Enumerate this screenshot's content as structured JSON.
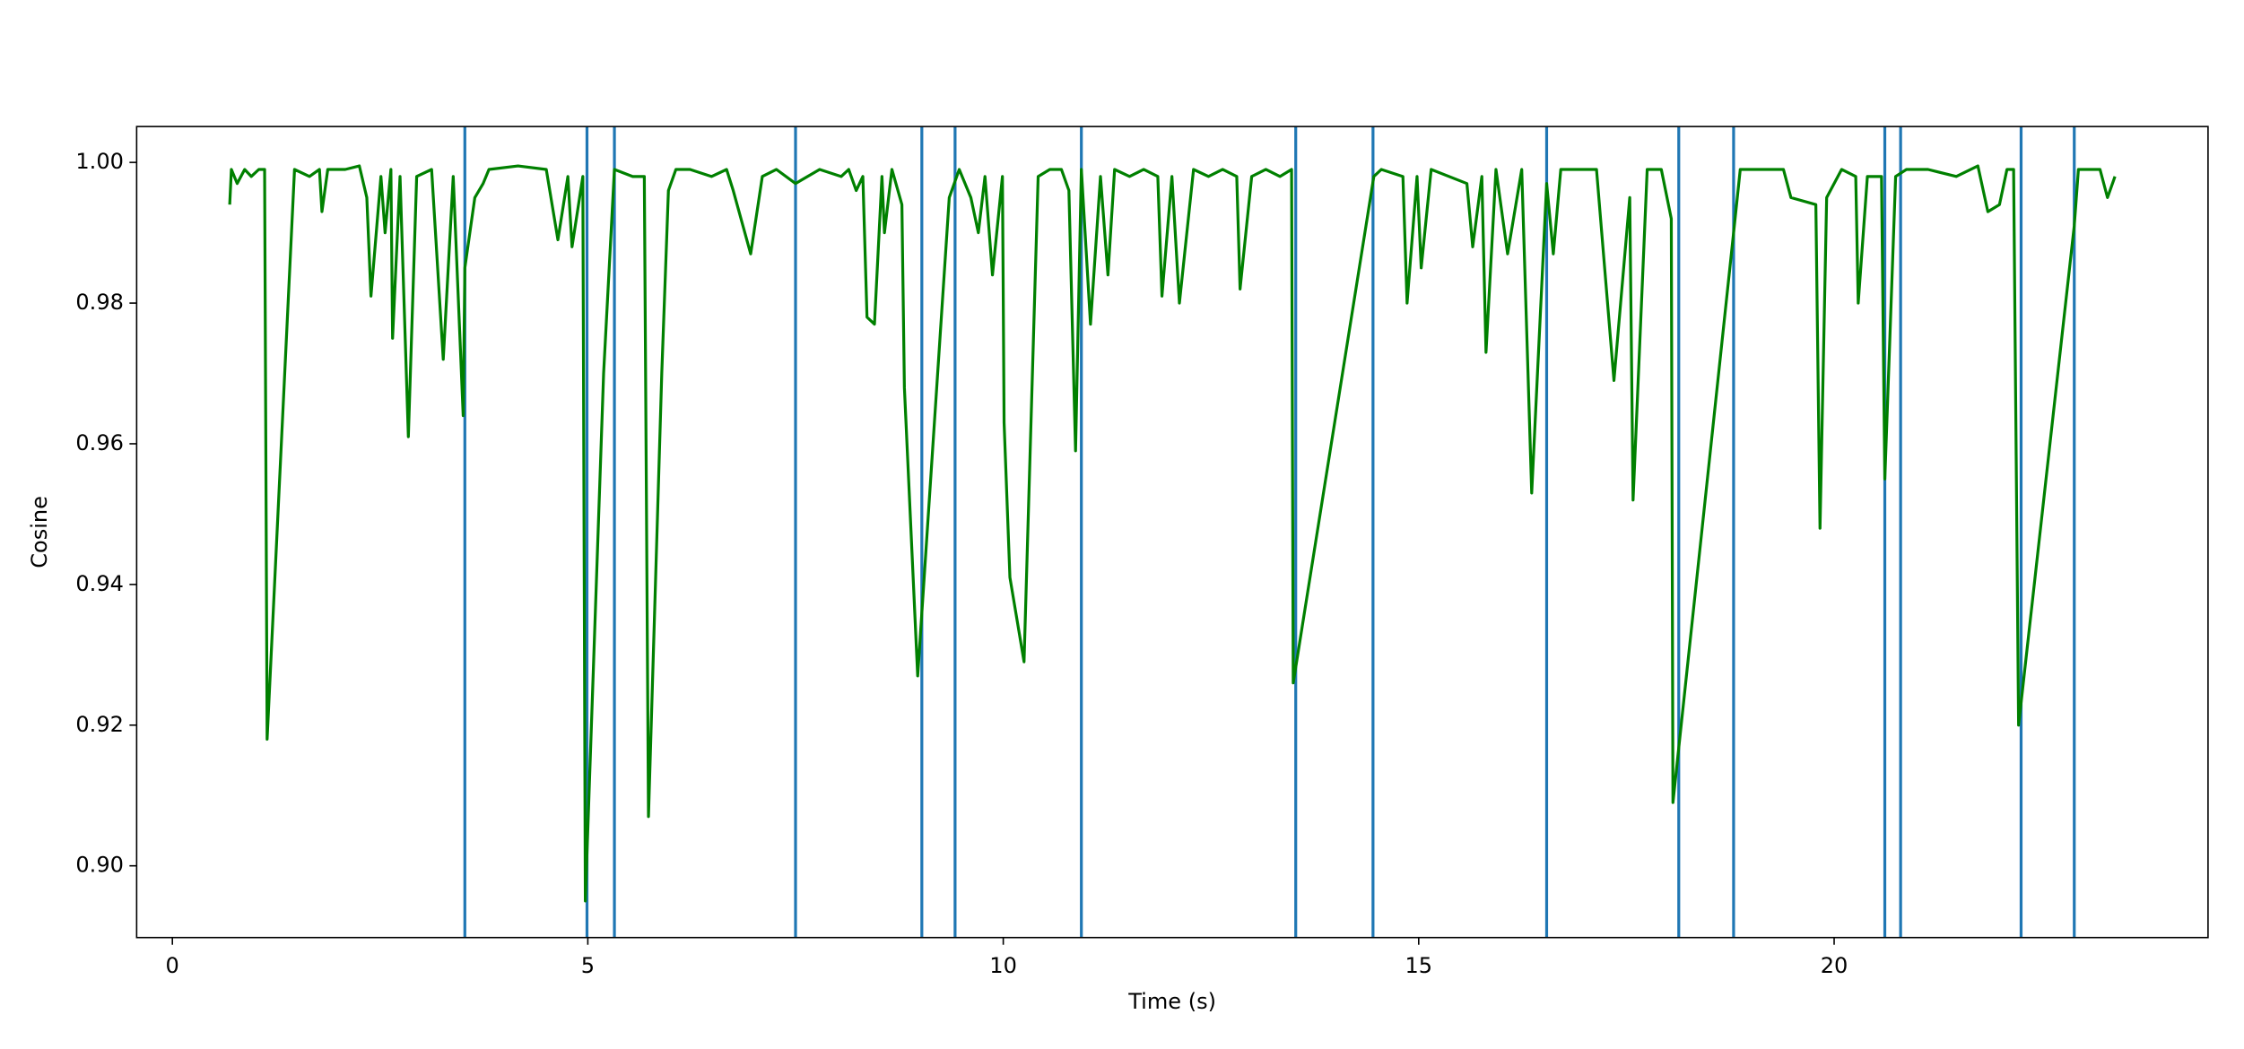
{
  "chart_data": {
    "type": "line",
    "xlabel": "Time (s)",
    "ylabel": "Cosine",
    "xlim": [
      -0.43,
      24.5
    ],
    "ylim": [
      0.8898,
      1.0051
    ],
    "xticks": [
      0,
      5,
      10,
      15,
      20
    ],
    "yticks": [
      {
        "value": 0.9,
        "label": "0.90"
      },
      0.92,
      0.94,
      0.96,
      0.98,
      {
        "value": 1.0,
        "label": "1.00"
      }
    ],
    "grid": false,
    "series": [
      {
        "color": "#008000",
        "x": [
          0.69,
          0.71,
          0.78,
          0.87,
          0.95,
          1.04,
          1.11,
          1.14,
          1.47,
          1.65,
          1.77,
          1.8,
          1.87,
          2.08,
          2.25,
          2.34,
          2.39,
          2.51,
          2.56,
          2.63,
          2.65,
          2.74,
          2.84,
          2.94,
          3.12,
          3.26,
          3.38,
          3.5,
          3.52,
          3.64,
          3.74,
          3.81,
          4.16,
          4.5,
          4.64,
          4.76,
          4.81,
          4.94,
          4.97,
          5.19,
          5.32,
          5.54,
          5.68,
          5.73,
          5.89,
          5.97,
          6.06,
          6.23,
          6.49,
          6.67,
          6.75,
          6.96,
          7.1,
          7.27,
          7.5,
          7.79,
          8.05,
          8.14,
          8.23,
          8.31,
          8.36,
          8.45,
          8.54,
          8.57,
          8.66,
          8.78,
          8.81,
          8.97,
          9.35,
          9.47,
          9.61,
          9.7,
          9.78,
          9.87,
          9.99,
          10.01,
          10.08,
          10.25,
          10.42,
          10.56,
          10.7,
          10.79,
          10.87,
          10.94,
          11.05,
          11.17,
          11.26,
          11.34,
          11.52,
          11.69,
          11.86,
          11.91,
          12.03,
          12.12,
          12.29,
          12.47,
          12.64,
          12.81,
          12.85,
          12.99,
          13.16,
          13.33,
          13.47,
          13.49,
          14.46,
          14.55,
          14.81,
          14.86,
          14.98,
          15.03,
          15.15,
          15.58,
          15.65,
          15.76,
          15.81,
          15.93,
          16.07,
          16.24,
          16.36,
          16.54,
          16.62,
          16.71,
          16.97,
          17.14,
          17.35,
          17.54,
          17.58,
          17.75,
          17.92,
          18.04,
          18.06,
          18.79,
          18.87,
          19.39,
          19.48,
          19.78,
          19.83,
          19.91,
          20.09,
          20.26,
          20.29,
          20.4,
          20.57,
          20.61,
          20.74,
          20.87,
          21.13,
          21.47,
          21.73,
          21.85,
          21.99,
          22.08,
          22.16,
          22.22,
          22.89,
          22.94,
          23.2,
          23.29,
          23.38
        ],
        "values": [
          0.994,
          0.999,
          0.997,
          0.999,
          0.998,
          0.999,
          0.999,
          0.918,
          0.999,
          0.998,
          0.999,
          0.993,
          0.999,
          0.999,
          0.9995,
          0.995,
          0.981,
          0.998,
          0.99,
          0.999,
          0.975,
          0.998,
          0.961,
          0.998,
          0.999,
          0.972,
          0.998,
          0.964,
          0.985,
          0.995,
          0.997,
          0.999,
          0.9995,
          0.999,
          0.989,
          0.998,
          0.988,
          0.998,
          0.895,
          0.97,
          0.999,
          0.998,
          0.998,
          0.907,
          0.97,
          0.996,
          0.999,
          0.999,
          0.998,
          0.999,
          0.996,
          0.987,
          0.998,
          0.999,
          0.997,
          0.999,
          0.998,
          0.999,
          0.996,
          0.998,
          0.978,
          0.977,
          0.998,
          0.99,
          0.999,
          0.994,
          0.968,
          0.927,
          0.995,
          0.999,
          0.995,
          0.99,
          0.998,
          0.984,
          0.998,
          0.963,
          0.941,
          0.929,
          0.998,
          0.999,
          0.999,
          0.996,
          0.959,
          0.999,
          0.977,
          0.998,
          0.984,
          0.999,
          0.998,
          0.999,
          0.998,
          0.981,
          0.998,
          0.98,
          0.999,
          0.998,
          0.999,
          0.998,
          0.982,
          0.998,
          0.999,
          0.998,
          0.999,
          0.926,
          0.998,
          0.999,
          0.998,
          0.98,
          0.998,
          0.985,
          0.999,
          0.997,
          0.988,
          0.998,
          0.973,
          0.999,
          0.987,
          0.999,
          0.953,
          0.997,
          0.987,
          0.999,
          0.999,
          0.999,
          0.969,
          0.995,
          0.952,
          0.999,
          0.999,
          0.992,
          0.909,
          0.99,
          0.999,
          0.999,
          0.995,
          0.994,
          0.948,
          0.995,
          0.999,
          0.998,
          0.98,
          0.998,
          0.998,
          0.955,
          0.998,
          0.999,
          0.999,
          0.998,
          0.9995,
          0.993,
          0.994,
          0.999,
          0.999,
          0.92,
          0.991,
          0.999,
          0.999,
          0.995,
          0.998
        ]
      }
    ],
    "vlines": {
      "color": "#1f77b4",
      "x": [
        3.52,
        4.99,
        5.32,
        7.5,
        9.02,
        9.42,
        10.94,
        13.52,
        14.45,
        16.54,
        18.13,
        18.79,
        20.61,
        20.8,
        22.25,
        22.89
      ]
    }
  }
}
